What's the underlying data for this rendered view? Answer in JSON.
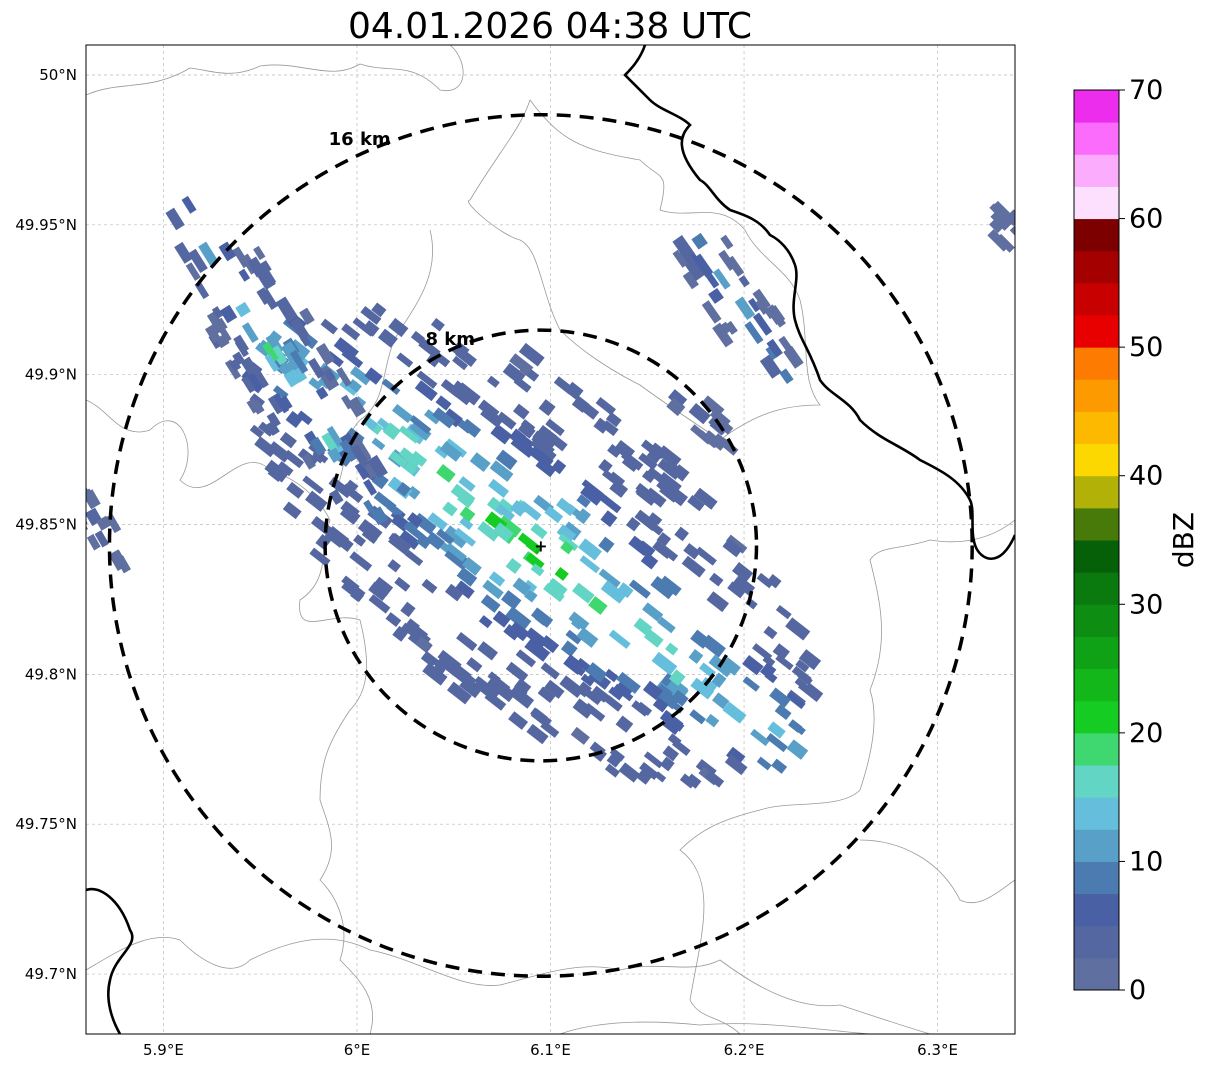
{
  "title": "04.01.2026 04:38 UTC",
  "map": {
    "lat_ticks": [
      "50°N",
      "49.95°N",
      "49.9°N",
      "49.85°N",
      "49.8°N",
      "49.75°N",
      "49.7°N"
    ],
    "lon_ticks": [
      "5.9°E",
      "6°E",
      "6.1°E",
      "6.2°E",
      "6.3°E"
    ],
    "lon_range": [
      5.86,
      6.34
    ],
    "lat_range": [
      49.68,
      50.01
    ],
    "radar_center": {
      "lon": 6.095,
      "lat": 49.843
    },
    "range_rings": [
      {
        "radius_km": 8,
        "label": "8 km"
      },
      {
        "radius_km": 16,
        "label": "16 km"
      }
    ],
    "gridlines": true,
    "radar_marker": "plus"
  },
  "colorbar": {
    "label": "dBZ",
    "ticks": [
      "0",
      "10",
      "20",
      "30",
      "40",
      "50",
      "60",
      "70"
    ],
    "min": 0,
    "max": 70,
    "step": 2.5,
    "colors": [
      "#5f6f9f",
      "#5567a0",
      "#4a60a5",
      "#4b7bb0",
      "#58a0c8",
      "#64bedc",
      "#63d5c4",
      "#3fd870",
      "#14cc22",
      "#14b71a",
      "#10a216",
      "#0d8d12",
      "#0a7a0e",
      "#066008",
      "#477a09",
      "#b1b108",
      "#fcd800",
      "#fcb900",
      "#fd9a00",
      "#fc7b00",
      "#e80000",
      "#c80000",
      "#a40000",
      "#7c0000",
      "#fde0fd",
      "#fcacfc",
      "#fc6cfc",
      "#ed2ded"
    ]
  },
  "echoes": [
    {
      "name": "main-cell",
      "lon": 6.09,
      "lat": 49.843,
      "length_km": 25,
      "width_km": 12,
      "angle_deg": 38,
      "peak_dbz": 22
    },
    {
      "name": "northwest-band",
      "lon": 5.96,
      "lat": 49.905,
      "length_km": 14,
      "width_km": 3.5,
      "angle_deg": 58,
      "peak_dbz": 19
    },
    {
      "name": "northeast-cell",
      "lon": 6.195,
      "lat": 49.925,
      "length_km": 7,
      "width_km": 2.5,
      "angle_deg": 55,
      "peak_dbz": 15
    },
    {
      "name": "east-streak",
      "lon": 6.18,
      "lat": 49.885,
      "length_km": 3,
      "width_km": 1.2,
      "angle_deg": 40,
      "peak_dbz": 6
    },
    {
      "name": "far-east-edge",
      "lon": 6.34,
      "lat": 49.945,
      "length_km": 3,
      "width_km": 1.4,
      "angle_deg": 45,
      "peak_dbz": 5
    },
    {
      "name": "far-west-edge",
      "lon": 5.865,
      "lat": 49.85,
      "length_km": 4,
      "width_km": 1.2,
      "angle_deg": 60,
      "peak_dbz": 4
    }
  ]
}
